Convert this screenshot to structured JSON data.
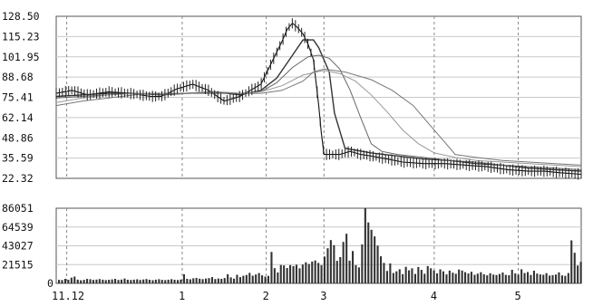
{
  "chart_data": [
    {
      "type": "candlestick-line",
      "panel": "price",
      "y_ticks": [
        "128.50",
        "115.23",
        "101.95",
        "88.68",
        "75.41",
        "62.14",
        "48.86",
        "35.59",
        "22.32"
      ],
      "ylim": [
        22.32,
        128.5
      ],
      "x_tick_labels": [
        "11.12",
        "1",
        "2",
        "3",
        "4",
        "5"
      ],
      "x_tick_positions": [
        0.02,
        0.24,
        0.4,
        0.51,
        0.72,
        0.88
      ],
      "grid": true,
      "price_series": [
        {
          "name": "",
          "x": [
            0.0,
            0.03,
            0.06,
            0.1,
            0.14,
            0.18,
            0.2,
            0.23,
            0.26,
            0.29,
            0.32,
            0.35,
            0.37,
            0.39,
            0.41,
            0.43,
            0.44,
            0.45,
            0.46,
            0.47,
            0.48,
            0.49,
            0.5,
            0.505,
            0.51,
            0.52,
            0.54,
            0.56,
            0.58,
            0.6,
            0.63,
            0.66,
            0.7,
            0.74,
            0.78,
            0.82,
            0.86,
            0.9,
            0.93,
            0.96,
            1.0
          ],
          "y": [
            78,
            80,
            77,
            79,
            78,
            76,
            76,
            81,
            84,
            80,
            73,
            76,
            80,
            84,
            98,
            112,
            120,
            124,
            121,
            117,
            110,
            100,
            70,
            52,
            38,
            38,
            38,
            40,
            38,
            37,
            35,
            33,
            32,
            32,
            31,
            30,
            28,
            27,
            27,
            26,
            25
          ]
        },
        {
          "name": "",
          "x": [
            0.0,
            0.05,
            0.1,
            0.15,
            0.2,
            0.25,
            0.3,
            0.35,
            0.39,
            0.42,
            0.45,
            0.47,
            0.49,
            0.5,
            0.52,
            0.53,
            0.55,
            0.6,
            0.65,
            0.7,
            0.75,
            0.8,
            0.85,
            0.9,
            0.95,
            1.0
          ],
          "y": [
            76,
            77,
            78,
            78,
            77,
            78,
            79,
            77,
            80,
            88,
            103,
            113,
            113,
            108,
            92,
            65,
            42,
            39,
            37,
            35,
            34,
            32,
            31,
            29,
            28,
            27
          ]
        },
        {
          "name": "",
          "x": [
            0.0,
            0.05,
            0.1,
            0.15,
            0.2,
            0.25,
            0.3,
            0.35,
            0.39,
            0.42,
            0.45,
            0.48,
            0.5,
            0.52,
            0.54,
            0.56,
            0.58,
            0.6,
            0.62,
            0.65,
            0.7,
            0.75,
            0.8,
            0.85,
            0.9,
            0.95,
            1.0
          ],
          "y": [
            75,
            76,
            77,
            78,
            77,
            78,
            78,
            78,
            79,
            85,
            95,
            102,
            103,
            101,
            94,
            80,
            62,
            45,
            40,
            38,
            36,
            34,
            33,
            31,
            30,
            29,
            28
          ]
        },
        {
          "name": "",
          "x": [
            0.0,
            0.05,
            0.1,
            0.15,
            0.2,
            0.25,
            0.3,
            0.35,
            0.39,
            0.43,
            0.47,
            0.51,
            0.54,
            0.57,
            0.6,
            0.63,
            0.66,
            0.69,
            0.72,
            0.76,
            0.8,
            0.85,
            0.9,
            0.95,
            1.0
          ],
          "y": [
            72,
            75,
            77,
            78,
            78,
            78,
            79,
            78,
            79,
            83,
            90,
            93,
            91,
            86,
            77,
            66,
            54,
            45,
            39,
            36,
            34,
            33,
            32,
            31,
            30
          ]
        },
        {
          "name": "",
          "x": [
            0.0,
            0.05,
            0.1,
            0.15,
            0.2,
            0.25,
            0.3,
            0.35,
            0.39,
            0.43,
            0.47,
            0.49,
            0.51,
            0.55,
            0.6,
            0.64,
            0.68,
            0.71,
            0.74,
            0.76,
            0.8,
            0.85,
            0.9,
            0.95,
            1.0
          ],
          "y": [
            70,
            73,
            75,
            77,
            78,
            78,
            79,
            78,
            78,
            80,
            86,
            92,
            94,
            92,
            87,
            80,
            70,
            58,
            46,
            38,
            36,
            34,
            33,
            32,
            31
          ]
        }
      ]
    },
    {
      "type": "bar",
      "panel": "volume",
      "y_ticks": [
        "86051",
        "64539",
        "43027",
        "21515",
        "0"
      ],
      "ylim": [
        0,
        86051
      ],
      "values": [
        4000,
        3800,
        5200,
        4100,
        6500,
        7800,
        4200,
        3500,
        4000,
        5100,
        4800,
        3900,
        4400,
        5000,
        4300,
        3700,
        4100,
        4600,
        5200,
        3900,
        4400,
        5600,
        4100,
        3800,
        4200,
        4700,
        3900,
        4500,
        5000,
        4100,
        3600,
        4200,
        4800,
        4000,
        3700,
        4300,
        4900,
        4100,
        3800,
        4400,
        10500,
        5200,
        4700,
        5800,
        6200,
        5400,
        4900,
        5500,
        6000,
        7200,
        5000,
        5600,
        5200,
        6100,
        10500,
        6800,
        5400,
        9800,
        7200,
        8700,
        9600,
        12000,
        8800,
        10200,
        11800,
        9200,
        7800,
        8600,
        36000,
        17400,
        12400,
        21000,
        20500,
        17600,
        20900,
        19800,
        21400,
        17200,
        21600,
        24200,
        22200,
        25000,
        26200,
        23400,
        20800,
        30800,
        40200,
        49600,
        43800,
        25800,
        30100,
        47500,
        56800,
        26000,
        37000,
        20800,
        18200,
        44600,
        86051,
        69800,
        61400,
        53800,
        43200,
        31000,
        23400,
        14200,
        22800,
        11900,
        13800,
        16200,
        10600,
        19000,
        14900,
        17200,
        10800,
        18800,
        15400,
        11000,
        19800,
        17300,
        14800,
        11400,
        16100,
        13800,
        10300,
        14600,
        12200,
        11000,
        15900,
        14700,
        12900,
        11300,
        13300,
        9900,
        11100,
        12800,
        10500,
        9200,
        11600,
        10100,
        9500,
        10800,
        12400,
        9700,
        9300,
        15600,
        11400,
        10100,
        16200,
        11800,
        13000,
        9600,
        14500,
        11200,
        10300,
        9900,
        11700,
        8900,
        9400,
        10200,
        12600,
        9100,
        8600,
        11800,
        49200,
        35000,
        20400,
        24700
      ]
    }
  ]
}
